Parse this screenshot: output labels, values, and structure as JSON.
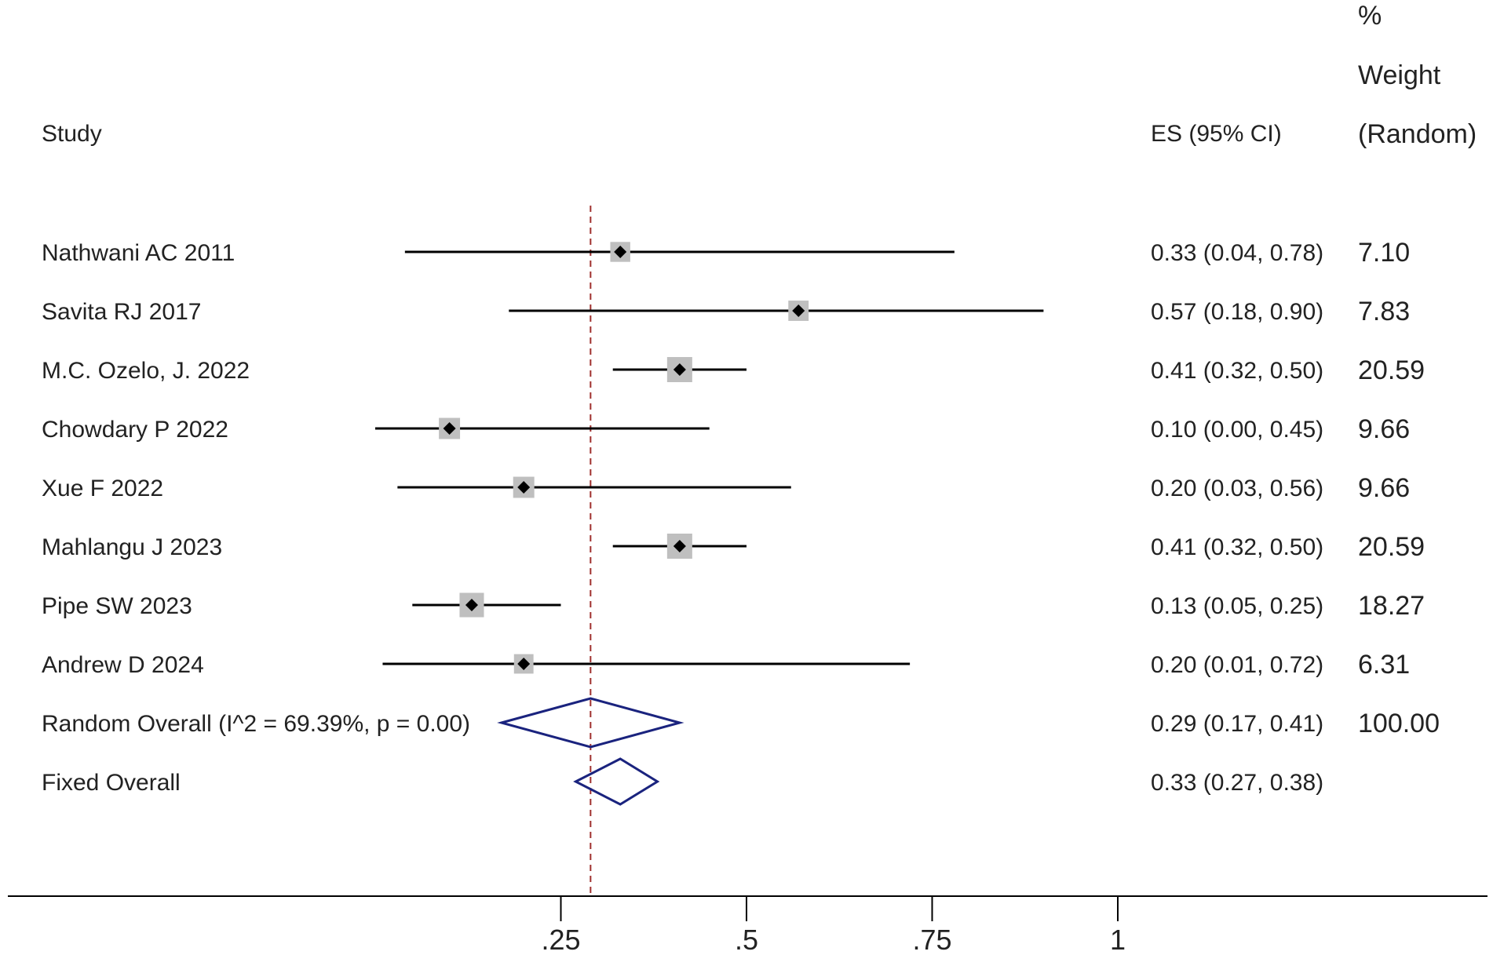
{
  "chart_data": {
    "type": "forest",
    "headers": {
      "study": "Study",
      "es": "ES (95% CI)",
      "weight_line1": "%",
      "weight_line2": "Weight",
      "weight_line3": "(Random)"
    },
    "studies": [
      {
        "label": "Nathwani AC 2011",
        "es": 0.33,
        "lo": 0.04,
        "hi": 0.78,
        "es_text": "0.33 (0.04, 0.78)",
        "weight": "7.10"
      },
      {
        "label": "Savita RJ 2017",
        "es": 0.57,
        "lo": 0.18,
        "hi": 0.9,
        "es_text": "0.57 (0.18, 0.90)",
        "weight": "7.83"
      },
      {
        "label": "M.C. Ozelo, J. 2022",
        "es": 0.41,
        "lo": 0.32,
        "hi": 0.5,
        "es_text": "0.41 (0.32, 0.50)",
        "weight": "20.59"
      },
      {
        "label": "Chowdary P 2022",
        "es": 0.1,
        "lo": 0.0,
        "hi": 0.45,
        "es_text": "0.10 (0.00, 0.45)",
        "weight": "9.66"
      },
      {
        "label": "Xue F  2022",
        "es": 0.2,
        "lo": 0.03,
        "hi": 0.56,
        "es_text": "0.20 (0.03, 0.56)",
        "weight": "9.66"
      },
      {
        "label": "Mahlangu J 2023",
        "es": 0.41,
        "lo": 0.32,
        "hi": 0.5,
        "es_text": "0.41 (0.32, 0.50)",
        "weight": "20.59"
      },
      {
        "label": "Pipe SW 2023",
        "es": 0.13,
        "lo": 0.05,
        "hi": 0.25,
        "es_text": "0.13 (0.05, 0.25)",
        "weight": "18.27"
      },
      {
        "label": "Andrew D 2024",
        "es": 0.2,
        "lo": 0.01,
        "hi": 0.72,
        "es_text": "0.20 (0.01, 0.72)",
        "weight": "6.31"
      }
    ],
    "overall": [
      {
        "label": "Random Overall  (I^2 = 69.39%, p = 0.00)",
        "es": 0.29,
        "lo": 0.17,
        "hi": 0.41,
        "es_text": "0.29 (0.17, 0.41)",
        "weight": "100.00"
      },
      {
        "label": "Fixed Overall",
        "es": 0.33,
        "lo": 0.27,
        "hi": 0.38,
        "es_text": "0.33 (0.27, 0.38)",
        "weight": ""
      }
    ],
    "reference_line": 0.29,
    "x_ticks": [
      0.25,
      0.5,
      0.75,
      1
    ],
    "x_tick_labels": [
      ".25",
      ".5",
      ".75",
      "1"
    ],
    "colors": {
      "ci_line": "#000000",
      "point": "#000000",
      "weight_box": "#bfbfbf",
      "diamond": "#1a237e",
      "reference": "#a0302e"
    }
  }
}
